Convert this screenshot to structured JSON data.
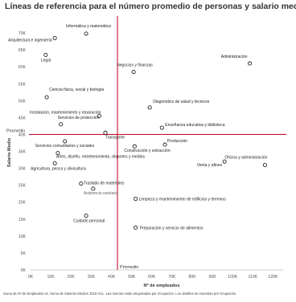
{
  "chart_data": {
    "type": "scatter",
    "title": "Líneas de referencia para el número promedio de personas y salario medio",
    "xlabel": "Nº de empleados",
    "ylabel": "Salario Medio",
    "xlim": [
      0,
      125000
    ],
    "ylim": [
      0,
      75000
    ],
    "x_ticks": [
      0,
      10000,
      20000,
      30000,
      40000,
      50000,
      60000,
      70000,
      80000,
      90000,
      100000,
      110000,
      120000
    ],
    "x_tick_labels": [
      "0K",
      "10K",
      "20K",
      "30K",
      "40K",
      "50K",
      "60K",
      "70K",
      "80K",
      "90K",
      "100K",
      "110K",
      "120K"
    ],
    "y_ticks": [
      0,
      5000,
      10000,
      15000,
      20000,
      25000,
      30000,
      35000,
      40000,
      45000,
      50000,
      55000,
      60000,
      65000,
      70000
    ],
    "y_tick_labels": [
      "0K",
      "5K",
      "10K",
      "15K",
      "20K",
      "25K",
      "30K",
      "35K",
      "40K",
      "45K",
      "50K",
      "55K",
      "60K",
      "65K",
      "70K"
    ],
    "grid": false,
    "reference_lines": {
      "x": 43000,
      "x_label": "Promedio",
      "y": 40000,
      "y_label": "Promedio"
    },
    "points": [
      {
        "label": "Informática y matemática",
        "x": 27500,
        "y": 69800
      },
      {
        "label": "Arquitectura e ingeniería",
        "x": 12000,
        "y": 68500
      },
      {
        "label": "Legal",
        "x": 7500,
        "y": 63500
      },
      {
        "label": "Administración",
        "x": 108500,
        "y": 61000
      },
      {
        "label": "Negocios y finanzas",
        "x": 51000,
        "y": 58500
      },
      {
        "label": "Ciencia física, social y biología",
        "x": 8000,
        "y": 51000
      },
      {
        "label": "Diagnóstico de salud y técnicos",
        "x": 59000,
        "y": 48000
      },
      {
        "label": "Instalación, mantenimiento y reparación",
        "x": 34000,
        "y": 45500
      },
      {
        "label": "Servicios de protección",
        "x": 15000,
        "y": 43000
      },
      {
        "label": "Enseñanza educativa y biblioteca",
        "x": 65000,
        "y": 42000
      },
      {
        "label": "Transporte",
        "x": 37000,
        "y": 40500
      },
      {
        "label": "Servicios comunitarios y sociales",
        "x": 17000,
        "y": 38000
      },
      {
        "label": "Producción",
        "x": 66500,
        "y": 37000
      },
      {
        "label": "Construcción y extracción",
        "x": 51500,
        "y": 36500
      },
      {
        "label": "Artes, diseño, entretenimiento, deportes y medios",
        "x": 13500,
        "y": 34500
      },
      {
        "label": "Oficina y administración",
        "x": 116000,
        "y": 31000
      },
      {
        "label": "Venta y afines",
        "x": 96000,
        "y": 32000
      },
      {
        "label": "Agricultura, pesca y silvicultura",
        "x": 12000,
        "y": 31500
      },
      {
        "label": "Traslado de materiales",
        "x": 25000,
        "y": 25500
      },
      {
        "label": "Asistencia sanitaria",
        "x": 31000,
        "y": 24000
      },
      {
        "label": "Limpieza y mantenimiento de edificios y terrenos",
        "x": 52000,
        "y": 21000
      },
      {
        "label": "Cuidado personal",
        "x": 27500,
        "y": 16000
      },
      {
        "label": "Preparación y servicio de alimentos",
        "x": 52000,
        "y": 12500
      }
    ],
    "colors": {
      "reference_line": "#c8102e",
      "marker": "#222222",
      "axis": "#999999"
    }
  },
  "footnote": "Suma de Nº de Empleados vs. Suma de Salarios Medios 2019 ACL. Las marcas están etiquetadas por Ocupación. Los detalles se muestran por Ocupación."
}
